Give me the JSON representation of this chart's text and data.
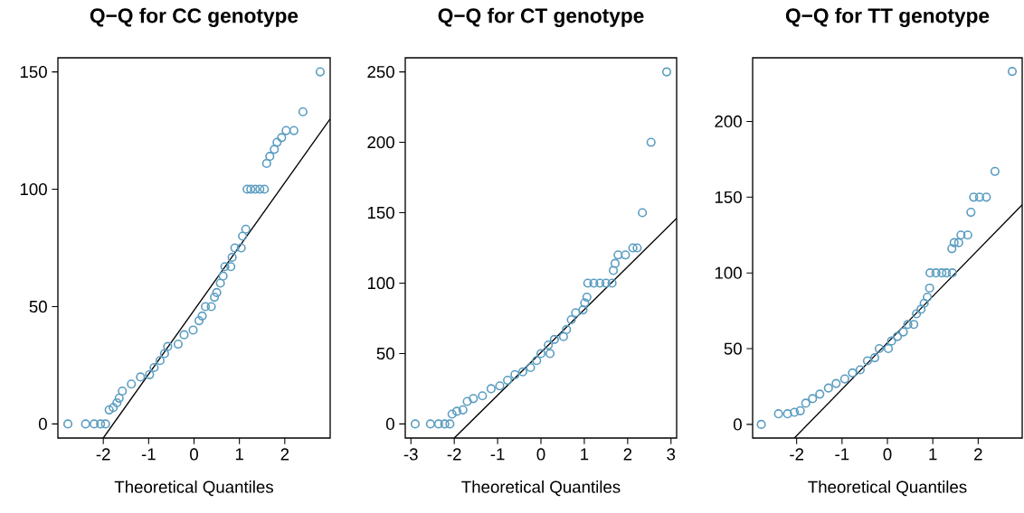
{
  "chart_data": [
    {
      "type": "scatter",
      "title": "Q−Q for CC genotype",
      "xlabel": "Theoretical Quantiles",
      "xlim": [
        -3,
        3
      ],
      "ylim": [
        -6,
        156
      ],
      "xticks": [
        -2,
        -1,
        0,
        1,
        2
      ],
      "yticks": [
        0,
        50,
        100,
        150
      ],
      "grid": false,
      "series": [
        {
          "marker": "circle",
          "color": "#5b9dc1",
          "x": [
            -2.78,
            -2.39,
            -2.2,
            -2.06,
            -1.95,
            -1.87,
            -1.78,
            -1.7,
            -1.65,
            -1.58,
            -1.38,
            -1.18,
            -0.98,
            -0.88,
            -0.75,
            -0.65,
            -0.58,
            -0.35,
            -0.22,
            -0.02,
            0.11,
            0.18,
            0.25,
            0.38,
            0.45,
            0.5,
            0.58,
            0.64,
            0.68,
            0.81,
            0.84,
            0.9,
            1.04,
            1.07,
            1.14,
            1.17,
            1.25,
            1.35,
            1.45,
            1.55,
            1.6,
            1.67,
            1.77,
            1.83,
            1.93,
            2.03,
            2.2,
            2.4,
            2.78
          ],
          "values": [
            0,
            0,
            0,
            0,
            0,
            6,
            7,
            9,
            11,
            14,
            17,
            20,
            21,
            24,
            27,
            30,
            33,
            34,
            38,
            40,
            44,
            46,
            50,
            50,
            54,
            56,
            60,
            63,
            67,
            67,
            71,
            75,
            75,
            80,
            83,
            100,
            100,
            100,
            100,
            100,
            111,
            114,
            117,
            120,
            122,
            125,
            125,
            133,
            150
          ]
        },
        {
          "type": "line",
          "marker": "none",
          "color": "#000000",
          "x": [
            -2,
            3
          ],
          "values": [
            -6,
            130
          ]
        }
      ]
    },
    {
      "type": "scatter",
      "title": "Q−Q for CT genotype",
      "xlabel": "Theoretical Quantiles",
      "xlim": [
        -3.13,
        3.13
      ],
      "ylim": [
        -10,
        260
      ],
      "xticks": [
        -3,
        -2,
        -1,
        0,
        1,
        2,
        3
      ],
      "yticks": [
        0,
        50,
        100,
        150,
        200,
        250
      ],
      "grid": false,
      "series": [
        {
          "marker": "circle",
          "color": "#5b9dc1",
          "x": [
            -2.9,
            -2.55,
            -2.36,
            -2.22,
            -2.1,
            -2.05,
            -1.94,
            -1.8,
            -1.7,
            -1.56,
            -1.35,
            -1.15,
            -0.95,
            -0.77,
            -0.6,
            -0.42,
            -0.24,
            -0.1,
            0,
            0.21,
            0.17,
            0.31,
            0.52,
            0.59,
            0.7,
            0.8,
            0.97,
            1.01,
            1.06,
            1.08,
            1.22,
            1.36,
            1.5,
            1.64,
            1.67,
            1.71,
            1.78,
            1.95,
            2.12,
            2.22,
            2.34,
            2.54,
            2.9
          ],
          "values": [
            0,
            0,
            0,
            0,
            0,
            7,
            9,
            10,
            16,
            18,
            20,
            25,
            27,
            31,
            35,
            37,
            40,
            45,
            50,
            50,
            56,
            60,
            62,
            67,
            74,
            79,
            81,
            86,
            90,
            100,
            100,
            100,
            100,
            100,
            109,
            114,
            120,
            120,
            125,
            125,
            150,
            200,
            250
          ]
        },
        {
          "type": "line",
          "marker": "none",
          "color": "#000000",
          "x": [
            -2,
            3.13
          ],
          "values": [
            -10,
            146
          ]
        }
      ]
    },
    {
      "type": "scatter",
      "title": "Q−Q for TT genotype",
      "xlabel": "Theoretical Quantiles",
      "xlim": [
        -2.97,
        2.97
      ],
      "ylim": [
        -9,
        242
      ],
      "xticks": [
        -2,
        -1,
        0,
        1,
        2
      ],
      "yticks": [
        0,
        50,
        100,
        150,
        200
      ],
      "grid": false,
      "series": [
        {
          "marker": "circle",
          "color": "#5b9dc1",
          "x": [
            -2.78,
            -2.4,
            -2.2,
            -2.05,
            -1.92,
            -1.8,
            -1.65,
            -1.49,
            -1.3,
            -1.13,
            -0.94,
            -0.77,
            -0.6,
            -0.44,
            -0.28,
            -0.18,
            0.02,
            0.09,
            0.22,
            0.35,
            0.45,
            0.58,
            0.64,
            0.74,
            0.81,
            0.88,
            0.93,
            0.94,
            1.07,
            1.2,
            1.3,
            1.43,
            1.42,
            1.47,
            1.57,
            1.62,
            1.77,
            1.84,
            1.9,
            2.03,
            2.18,
            2.37,
            2.75
          ],
          "values": [
            0,
            7,
            7,
            8,
            9,
            14,
            17,
            20,
            24,
            27,
            30,
            34,
            36,
            42,
            44,
            50,
            50,
            55,
            58,
            61,
            66,
            66,
            73,
            76,
            80,
            84,
            90,
            100,
            100,
            100,
            100,
            100,
            116,
            120,
            120,
            125,
            125,
            140,
            150,
            150,
            150,
            167,
            233
          ]
        },
        {
          "type": "line",
          "marker": "none",
          "color": "#000000",
          "x": [
            -2.05,
            2.97
          ],
          "values": [
            -9,
            145
          ]
        }
      ]
    }
  ]
}
